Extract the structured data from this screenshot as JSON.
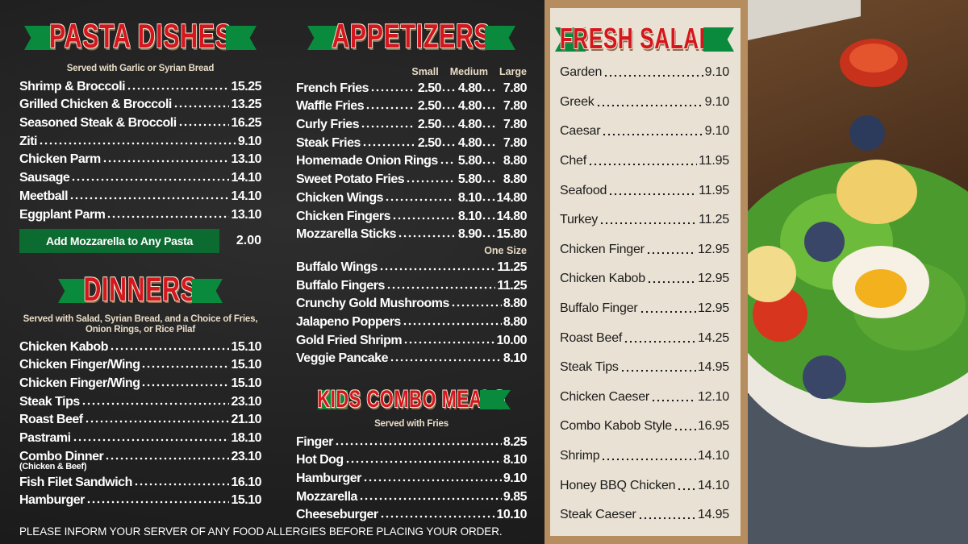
{
  "pasta": {
    "title": "PASTA DISHES",
    "subtitle": "Served with Garlic or Syrian Bread",
    "items": [
      {
        "name": "Shrimp & Broccoli",
        "price": "15.25"
      },
      {
        "name": "Grilled Chicken & Broccoli",
        "price": "13.25"
      },
      {
        "name": "Seasoned Steak & Broccoli",
        "price": "16.25"
      },
      {
        "name": "Ziti",
        "price": "9.10"
      },
      {
        "name": "Chicken Parm",
        "price": "13.10"
      },
      {
        "name": "Sausage",
        "price": "14.10"
      },
      {
        "name": "Meetball",
        "price": "14.10"
      },
      {
        "name": "Eggplant Parm",
        "price": "13.10"
      }
    ],
    "addon_label": "Add Mozzarella to Any Pasta",
    "addon_price": "2.00"
  },
  "dinners": {
    "title": "DINNERS",
    "subtitle": "Served with Salad, Syrian Bread, and a Choice of Fries, Onion Rings, or Rice Pilaf",
    "items": [
      {
        "name": "Chicken Kabob",
        "price": "15.10"
      },
      {
        "name": "Chicken Finger/Wing",
        "price": "15.10"
      },
      {
        "name": "Chicken Finger/Wing",
        "price": "15.10"
      },
      {
        "name": "Steak Tips",
        "price": "23.10"
      },
      {
        "name": "Roast Beef",
        "price": "21.10"
      },
      {
        "name": "Pastrami",
        "price": "18.10"
      },
      {
        "name": "Combo Dinner",
        "price": "23.10",
        "note": "(Chicken & Beef)"
      },
      {
        "name": "Fish Filet Sandwich",
        "price": "16.10"
      },
      {
        "name": "Hamburger",
        "price": "15.10"
      }
    ]
  },
  "appetizers": {
    "title": "APPETIZERS",
    "size_headers": [
      "Small",
      "Medium",
      "Large"
    ],
    "one_size_label": "One Size",
    "sized_items": [
      {
        "name": "French Fries",
        "prices": [
          "2.50",
          "4.80",
          "7.80"
        ]
      },
      {
        "name": "Waffle Fries",
        "prices": [
          "2.50",
          "4.80",
          "7.80"
        ]
      },
      {
        "name": "Curly Fries",
        "prices": [
          "2.50",
          "4.80",
          "7.80"
        ]
      },
      {
        "name": "Steak Fries",
        "prices": [
          "2.50",
          "4.80",
          "7.80"
        ]
      },
      {
        "name": "Homemade Onion Rings",
        "prices": [
          null,
          "5.80",
          "8.80"
        ]
      },
      {
        "name": "Sweet Potato Fries",
        "prices": [
          null,
          "5.80",
          "8.80"
        ]
      },
      {
        "name": "Chicken Wings",
        "prices": [
          null,
          "8.10",
          "14.80"
        ]
      },
      {
        "name": "Chicken Fingers",
        "prices": [
          null,
          "8.10",
          "14.80"
        ]
      },
      {
        "name": "Mozzarella Sticks",
        "prices": [
          null,
          "8.90",
          "15.80"
        ]
      }
    ],
    "items": [
      {
        "name": "Buffalo Wings",
        "price": "11.25"
      },
      {
        "name": "Buffalo Fingers",
        "price": "11.25"
      },
      {
        "name": "Crunchy Gold Mushrooms",
        "price": "8.80"
      },
      {
        "name": "Jalapeno Poppers",
        "price": "8.80"
      },
      {
        "name": "Gold Fried Shripm",
        "price": "10.00"
      },
      {
        "name": "Veggie Pancake",
        "price": "8.10"
      }
    ]
  },
  "kids": {
    "title": "KIDS COMBO MEALS",
    "subtitle": "Served with Fries",
    "items": [
      {
        "name": "Finger",
        "price": "8.25"
      },
      {
        "name": "Hot Dog",
        "price": "8.10"
      },
      {
        "name": "Hamburger",
        "price": "9.10"
      },
      {
        "name": "Mozzarella",
        "price": "9.85"
      },
      {
        "name": "Cheeseburger",
        "price": "10.10"
      }
    ]
  },
  "salads": {
    "title": "FRESH SALADS",
    "items": [
      {
        "name": "Garden",
        "price": "9.10"
      },
      {
        "name": "Greek",
        "price": "9.10"
      },
      {
        "name": "Caesar",
        "price": "9.10"
      },
      {
        "name": "Chef",
        "price": "11.95"
      },
      {
        "name": "Seafood",
        "price": "11.95"
      },
      {
        "name": "Turkey",
        "price": "11.25"
      },
      {
        "name": "Chicken Finger",
        "price": "12.95"
      },
      {
        "name": "Chicken Kabob",
        "price": "12.95"
      },
      {
        "name": "Buffalo Finger",
        "price": "12.95"
      },
      {
        "name": "Roast Beef",
        "price": "14.25"
      },
      {
        "name": "Steak Tips",
        "price": "14.95"
      },
      {
        "name": "Chicken Caeser",
        "price": "12.10"
      },
      {
        "name": "Combo Kabob Style",
        "price": "16.95"
      },
      {
        "name": "Shrimp",
        "price": "14.10"
      },
      {
        "name": "Honey BBQ Chicken",
        "price": "14.10"
      },
      {
        "name": "Steak Caeser",
        "price": "14.95"
      }
    ]
  },
  "footer": "PLEASE INFORM YOUR SERVER OF ANY FOOD ALLERGIES BEFORE PLACING YOUR ORDER.",
  "colors": {
    "title_red": "#d4161f",
    "ribbon_green": "#0a8a3c",
    "chalkboard": "#1d1d1d",
    "paper": "#e9e1d3"
  }
}
